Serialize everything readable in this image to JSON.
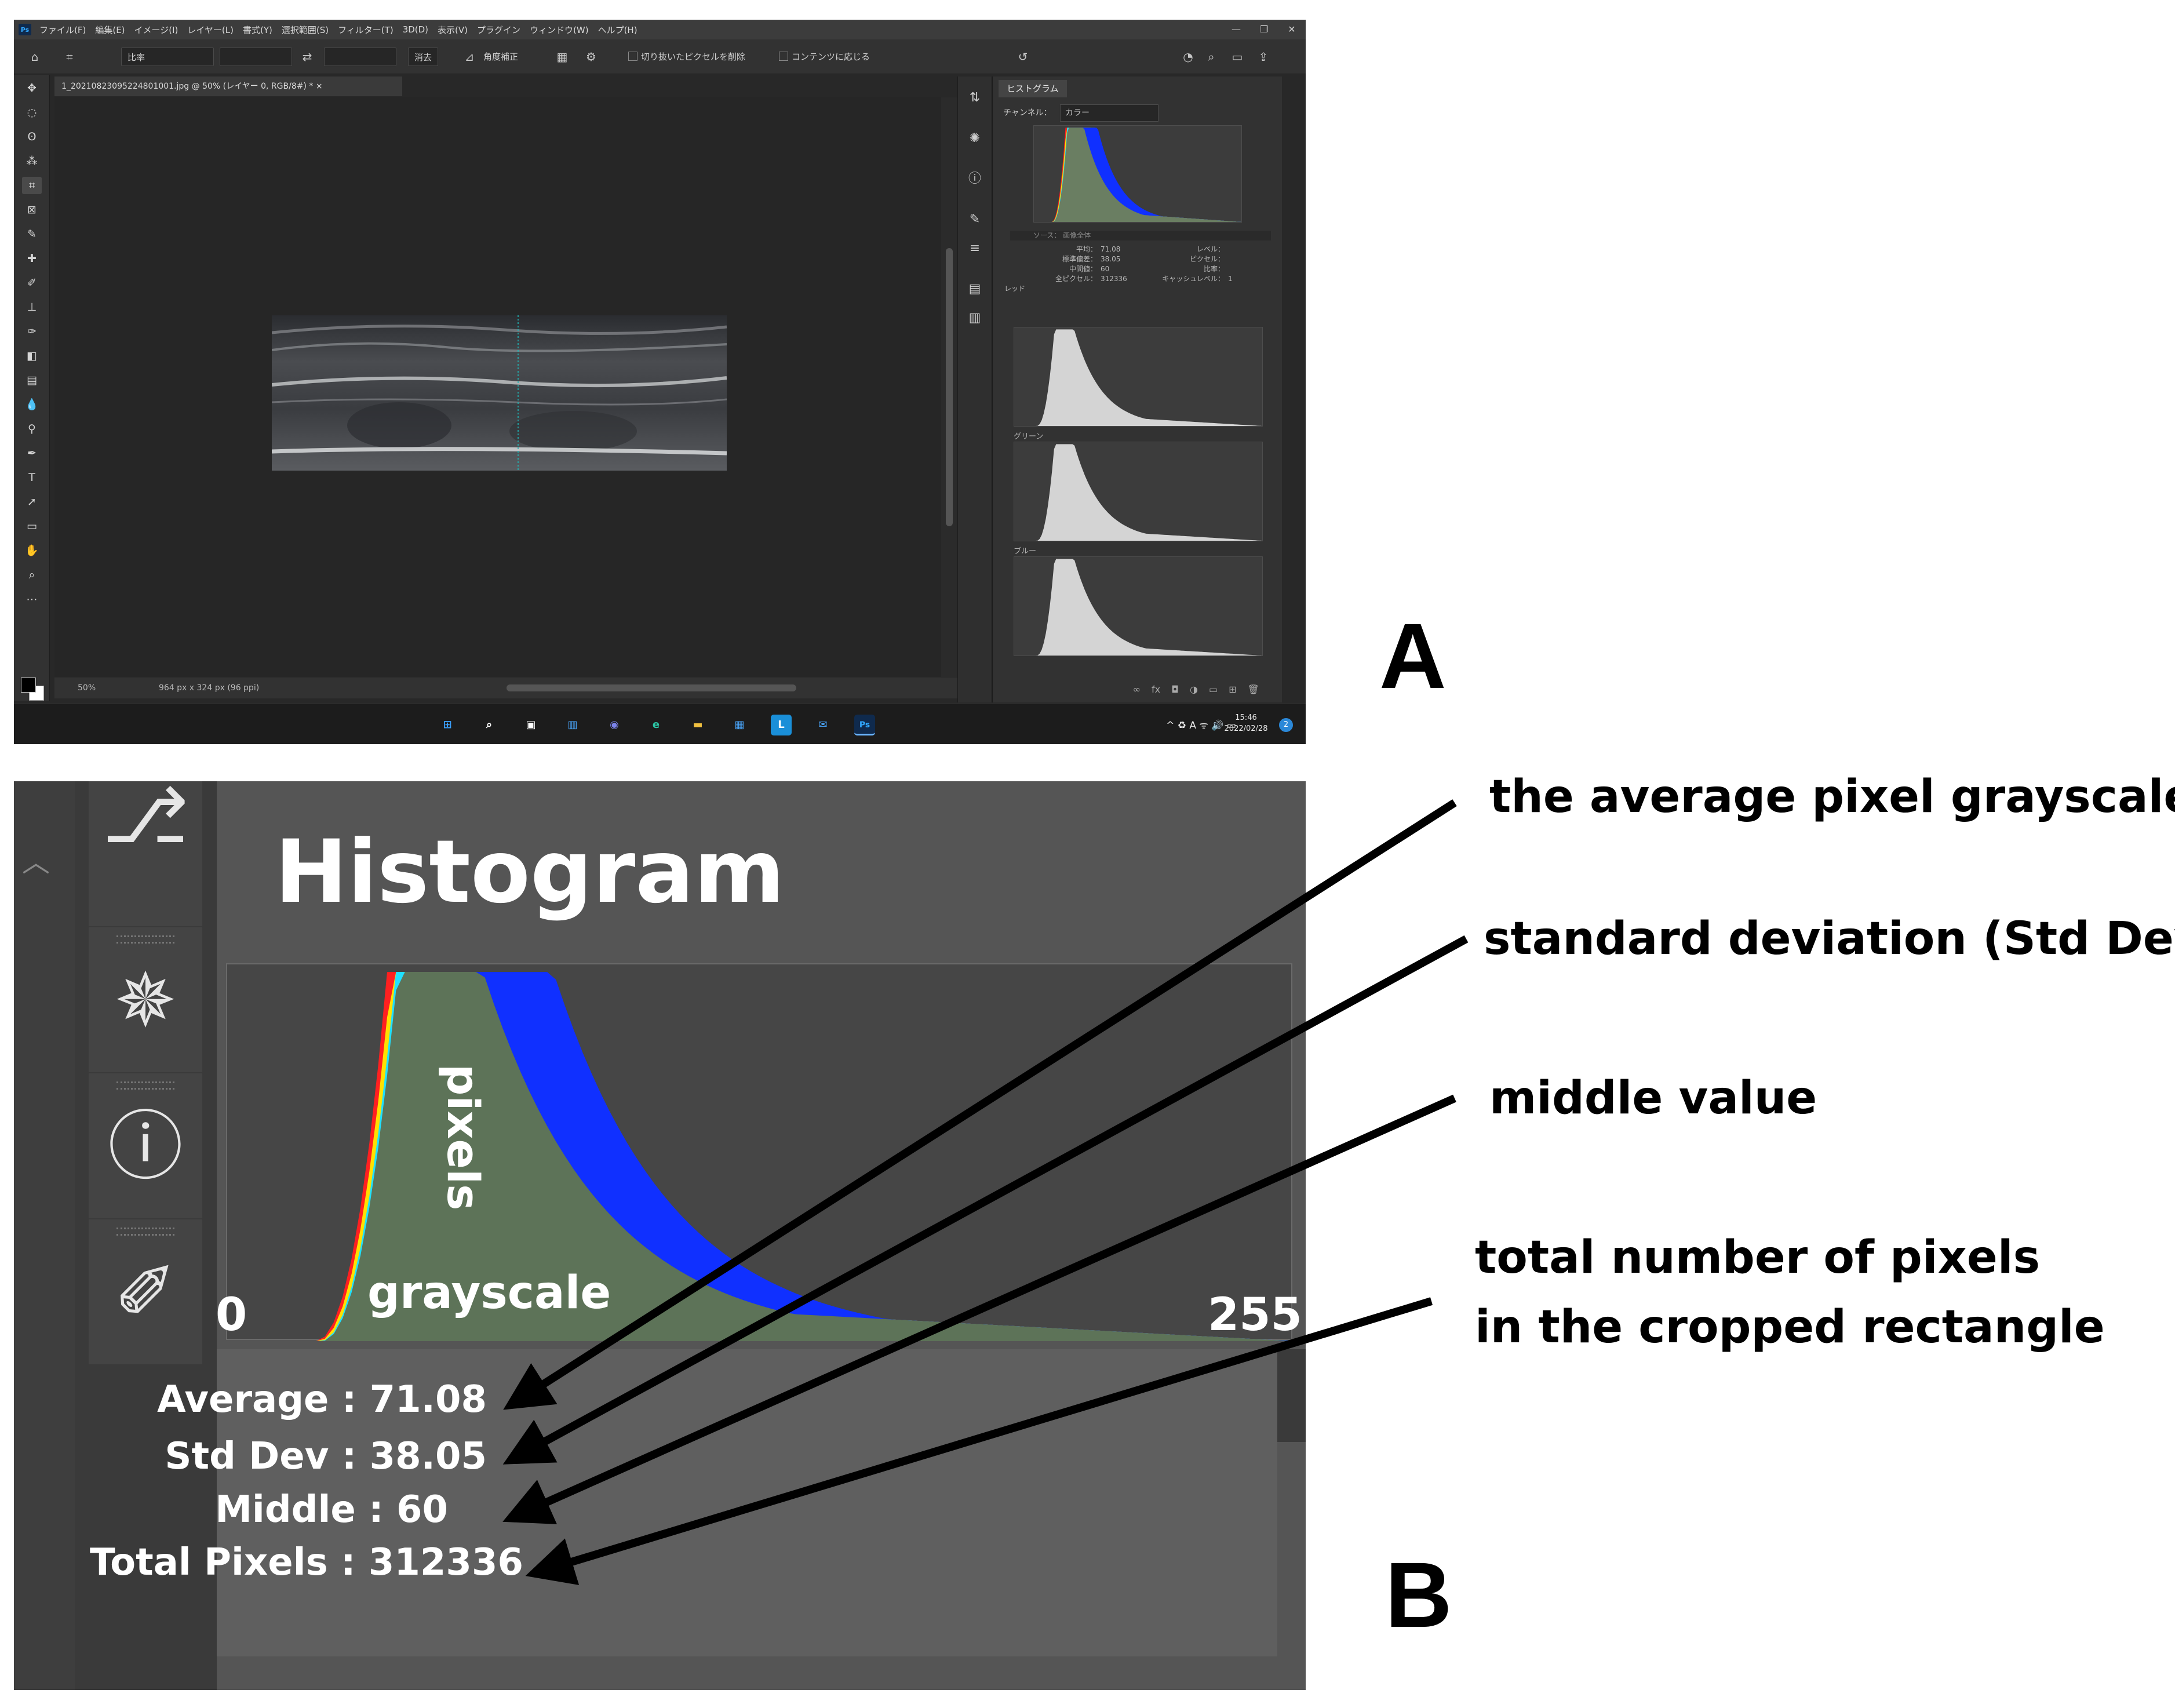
{
  "panel_a": {
    "label": "A",
    "menubar": {
      "logo": "Ps",
      "items": [
        "ファイル(F)",
        "編集(E)",
        "イメージ(I)",
        "レイヤー(L)",
        "書式(Y)",
        "選択範囲(S)",
        "フィルター(T)",
        "3D(D)",
        "表示(V)",
        "プラグイン",
        "ウィンドウ(W)",
        "ヘルプ(H)"
      ],
      "window_controls": [
        "—",
        "❐",
        "✕"
      ]
    },
    "options_bar": {
      "ratio_select": "比率",
      "clear_button": "消去",
      "straighten_button": "角度補正",
      "delete_cropped_checkbox": "切り抜いたピクセルを削除",
      "content_aware_checkbox": "コンテンツに応じる"
    },
    "document_tab": "1_20210823095224801001.jpg @ 50% (レイヤー 0, RGB/8#) *  ×",
    "status": {
      "zoom": "50%",
      "size": "964 px x 324 px (96 ppi)"
    },
    "histogram_panel": {
      "tab": "ヒストグラム",
      "channel_label": "チャンネル：",
      "channel_value": "カラー",
      "source": "ソース：  画像全体",
      "stats_labels": [
        "平均：",
        "標準偏差：",
        "中間値：",
        "全ピクセル：",
        "レッド"
      ],
      "stats_values": [
        "71.08",
        "38.05",
        "60",
        "312336"
      ],
      "stats_labels_right": [
        "レベル：",
        "ピクセル：",
        "比率：",
        "キャッシュレベル："
      ],
      "cache_level": "1",
      "channels": [
        "グリーン",
        "ブルー"
      ],
      "bottom_icons": "∞ fx ◘ ◑ ▭ ⊞ 🗑"
    },
    "taskbar": {
      "apps": [
        "⊞",
        "⌕",
        "▣",
        "▥",
        "◉",
        "e",
        "▬",
        "▦",
        "L",
        "✉",
        "Ps"
      ],
      "tray": "^ ♻ A ᯤ 🔊 ▭",
      "time": "15:46",
      "date": "2022/02/28",
      "notifications": "2"
    },
    "colors": {
      "ps_dark": "#282828",
      "ps_panel": "#323232",
      "accent": "#31a8ff"
    }
  },
  "panel_b": {
    "label": "B",
    "title": "Histogram",
    "y_label": "pixels",
    "x_label": "grayscale",
    "x_min_label": "0",
    "x_max_label": "255",
    "stats": [
      {
        "label": "Average",
        "sep": ":",
        "value": "71.08",
        "text": "Average  : 71.08"
      },
      {
        "label": "Std  Dev",
        "sep": ":",
        "value": "38.05",
        "text": "Std  Dev : 38.05"
      },
      {
        "label": "Middle",
        "sep": ":",
        "value": "60",
        "text": "Middle : 60"
      },
      {
        "label": "Total Pixels",
        "sep": ":",
        "value": "312336",
        "text": "Total Pixels : 312336"
      }
    ],
    "annotations": [
      "the average pixel grayscale",
      "standard deviation (Std Dev)",
      "middle value",
      "total number of pixels",
      "in the cropped rectangle"
    ],
    "icons": [
      "history-icon",
      "ship-wheel-icon",
      "info-icon",
      "brush-settings-icon"
    ]
  }
}
